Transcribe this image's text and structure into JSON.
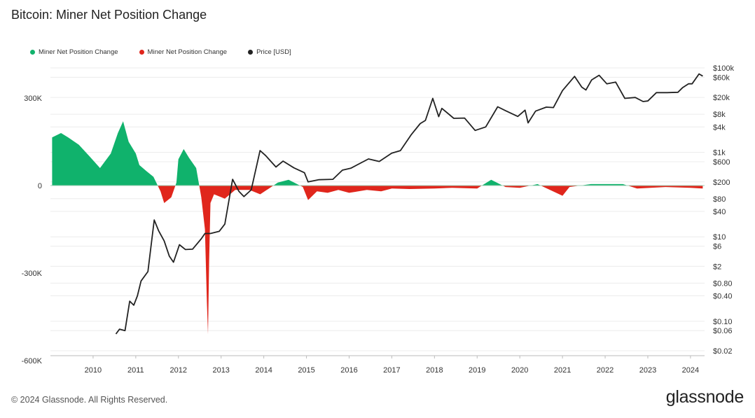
{
  "header": {
    "title": "Bitcoin: Miner Net Position Change"
  },
  "footer": {
    "copyright": "© 2024 Glassnode. All Rights Reserved.",
    "brand": "glassnode"
  },
  "colors": {
    "positive": "#10b26c",
    "negative": "#e0261c",
    "price": "#222222",
    "grid": "#ececec"
  },
  "chart_data": {
    "type": "area",
    "title": "Bitcoin: Miner Net Position Change",
    "legend": {
      "placement": "top-left",
      "entries": [
        {
          "label": "Miner Net Position Change",
          "color": "#10b26c"
        },
        {
          "label": "Miner Net Position Change",
          "color": "#e0261c"
        },
        {
          "label": "Price [USD]",
          "color": "#222222"
        }
      ]
    },
    "x_axis": {
      "range": [
        "2009-01-01",
        "2024-05-01"
      ],
      "ticks": [
        "2010",
        "2011",
        "2012",
        "2013",
        "2014",
        "2015",
        "2016",
        "2017",
        "2018",
        "2019",
        "2020",
        "2021",
        "2022",
        "2023",
        "2024"
      ]
    },
    "y_left": {
      "range": [
        -620000,
        360000
      ],
      "ticks": [
        {
          "value": 300000,
          "label": "300K"
        },
        {
          "value": 0,
          "label": "0"
        },
        {
          "value": -300000,
          "label": "-300K"
        },
        {
          "value": -600000,
          "label": "-600K"
        }
      ]
    },
    "y_right": {
      "scale": "log",
      "range": [
        0.018,
        140000
      ],
      "ticks": [
        {
          "value": 100000,
          "label": "$100k"
        },
        {
          "value": 60000,
          "label": "$60k"
        },
        {
          "value": 20000,
          "label": "$20k"
        },
        {
          "value": 8000,
          "label": "$8k"
        },
        {
          "value": 4000,
          "label": "$4k"
        },
        {
          "value": 1000,
          "label": "$1k"
        },
        {
          "value": 600,
          "label": "$600"
        },
        {
          "value": 200,
          "label": "$200"
        },
        {
          "value": 80,
          "label": "$80"
        },
        {
          "value": 40,
          "label": "$40"
        },
        {
          "value": 10,
          "label": "$10"
        },
        {
          "value": 6,
          "label": "$6"
        },
        {
          "value": 2,
          "label": "$2"
        },
        {
          "value": 0.8,
          "label": "$0.80"
        },
        {
          "value": 0.4,
          "label": "$0.40"
        },
        {
          "value": 0.1,
          "label": "$0.10"
        },
        {
          "value": 0.06,
          "label": "$0.06"
        },
        {
          "value": 0.02,
          "label": "$0.02"
        }
      ]
    },
    "series": [
      {
        "name": "Miner Net Position Change",
        "kind": "area",
        "points": [
          [
            "2009-01-15",
            165000
          ],
          [
            "2009-04-01",
            180000
          ],
          [
            "2009-06-01",
            165000
          ],
          [
            "2009-09-01",
            140000
          ],
          [
            "2009-12-01",
            100000
          ],
          [
            "2010-03-01",
            60000
          ],
          [
            "2010-06-01",
            110000
          ],
          [
            "2010-08-01",
            180000
          ],
          [
            "2010-09-15",
            220000
          ],
          [
            "2010-11-01",
            150000
          ],
          [
            "2011-01-01",
            110000
          ],
          [
            "2011-02-01",
            70000
          ],
          [
            "2011-04-01",
            50000
          ],
          [
            "2011-06-01",
            30000
          ],
          [
            "2011-08-01",
            -20000
          ],
          [
            "2011-09-01",
            -60000
          ],
          [
            "2011-11-01",
            -40000
          ],
          [
            "2011-12-15",
            10000
          ],
          [
            "2012-01-01",
            90000
          ],
          [
            "2012-02-15",
            125000
          ],
          [
            "2012-04-01",
            95000
          ],
          [
            "2012-06-01",
            60000
          ],
          [
            "2012-07-15",
            -40000
          ],
          [
            "2012-08-15",
            -150000
          ],
          [
            "2012-09-01",
            -400000
          ],
          [
            "2012-09-10",
            -510000
          ],
          [
            "2012-09-20",
            -260000
          ],
          [
            "2012-10-01",
            -60000
          ],
          [
            "2012-11-01",
            -30000
          ],
          [
            "2013-02-01",
            -45000
          ],
          [
            "2013-05-01",
            -15000
          ],
          [
            "2013-09-01",
            -15000
          ],
          [
            "2013-12-01",
            -30000
          ],
          [
            "2014-05-01",
            10000
          ],
          [
            "2014-08-01",
            20000
          ],
          [
            "2014-12-01",
            -5000
          ],
          [
            "2015-01-15",
            -50000
          ],
          [
            "2015-04-01",
            -20000
          ],
          [
            "2015-07-01",
            -25000
          ],
          [
            "2015-10-01",
            -15000
          ],
          [
            "2016-01-01",
            -25000
          ],
          [
            "2016-06-01",
            -15000
          ],
          [
            "2016-10-01",
            -20000
          ],
          [
            "2017-01-01",
            -10000
          ],
          [
            "2017-06-01",
            -12000
          ],
          [
            "2018-01-01",
            -10000
          ],
          [
            "2018-06-01",
            -8000
          ],
          [
            "2019-01-01",
            -10000
          ],
          [
            "2019-05-01",
            20000
          ],
          [
            "2019-09-01",
            -5000
          ],
          [
            "2020-01-01",
            -8000
          ],
          [
            "2020-06-01",
            5000
          ],
          [
            "2021-01-01",
            -35000
          ],
          [
            "2021-03-01",
            -5000
          ],
          [
            "2021-09-01",
            5000
          ],
          [
            "2022-06-01",
            5000
          ],
          [
            "2022-10-01",
            -10000
          ],
          [
            "2023-06-01",
            -5000
          ],
          [
            "2024-01-01",
            -8000
          ],
          [
            "2024-04-15",
            -10000
          ]
        ]
      },
      {
        "name": "Price [USD]",
        "kind": "line",
        "points": [
          [
            "2010-07-15",
            0.05
          ],
          [
            "2010-08-15",
            0.065
          ],
          [
            "2010-10-01",
            0.06
          ],
          [
            "2010-11-10",
            0.3
          ],
          [
            "2010-12-15",
            0.24
          ],
          [
            "2011-01-15",
            0.4
          ],
          [
            "2011-02-15",
            0.9
          ],
          [
            "2011-04-15",
            1.5
          ],
          [
            "2011-06-08",
            25
          ],
          [
            "2011-07-15",
            14
          ],
          [
            "2011-09-01",
            8
          ],
          [
            "2011-10-15",
            3.5
          ],
          [
            "2011-11-20",
            2.5
          ],
          [
            "2012-01-10",
            6.5
          ],
          [
            "2012-03-01",
            5
          ],
          [
            "2012-05-01",
            5.1
          ],
          [
            "2012-07-15",
            9
          ],
          [
            "2012-08-15",
            12
          ],
          [
            "2012-10-01",
            12
          ],
          [
            "2012-12-15",
            13.5
          ],
          [
            "2013-02-01",
            20
          ],
          [
            "2013-04-09",
            230
          ],
          [
            "2013-06-01",
            120
          ],
          [
            "2013-07-15",
            90
          ],
          [
            "2013-09-15",
            130
          ],
          [
            "2013-11-30",
            1100
          ],
          [
            "2014-01-15",
            850
          ],
          [
            "2014-04-15",
            450
          ],
          [
            "2014-06-15",
            620
          ],
          [
            "2014-09-15",
            430
          ],
          [
            "2014-12-15",
            330
          ],
          [
            "2015-01-15",
            200
          ],
          [
            "2015-04-15",
            225
          ],
          [
            "2015-08-15",
            230
          ],
          [
            "2015-11-05",
            380
          ],
          [
            "2016-01-15",
            420
          ],
          [
            "2016-06-15",
            700
          ],
          [
            "2016-09-15",
            610
          ],
          [
            "2016-12-31",
            960
          ],
          [
            "2017-03-15",
            1100
          ],
          [
            "2017-06-15",
            2600
          ],
          [
            "2017-09-01",
            4800
          ],
          [
            "2017-10-15",
            5700
          ],
          [
            "2017-12-17",
            19000
          ],
          [
            "2018-02-06",
            7000
          ],
          [
            "2018-03-05",
            11000
          ],
          [
            "2018-06-15",
            6400
          ],
          [
            "2018-09-15",
            6500
          ],
          [
            "2018-12-15",
            3300
          ],
          [
            "2019-03-15",
            4000
          ],
          [
            "2019-06-26",
            12000
          ],
          [
            "2019-09-01",
            9700
          ],
          [
            "2019-12-15",
            7100
          ],
          [
            "2020-02-15",
            10000
          ],
          [
            "2020-03-12",
            5000
          ],
          [
            "2020-05-15",
            9500
          ],
          [
            "2020-08-15",
            11800
          ],
          [
            "2020-10-15",
            11500
          ],
          [
            "2020-12-31",
            29000
          ],
          [
            "2021-04-14",
            63000
          ],
          [
            "2021-06-15",
            35000
          ],
          [
            "2021-07-20",
            30000
          ],
          [
            "2021-09-07",
            52000
          ],
          [
            "2021-11-10",
            67000
          ],
          [
            "2022-01-15",
            42000
          ],
          [
            "2022-04-01",
            46000
          ],
          [
            "2022-06-18",
            19000
          ],
          [
            "2022-09-15",
            20000
          ],
          [
            "2022-11-21",
            16000
          ],
          [
            "2023-01-01",
            16500
          ],
          [
            "2023-03-15",
            26000
          ],
          [
            "2023-06-15",
            26000
          ],
          [
            "2023-09-15",
            26500
          ],
          [
            "2023-10-25",
            34000
          ],
          [
            "2023-12-15",
            42000
          ],
          [
            "2024-01-15",
            42000
          ],
          [
            "2024-03-14",
            72000
          ],
          [
            "2024-04-15",
            64000
          ]
        ]
      }
    ]
  }
}
